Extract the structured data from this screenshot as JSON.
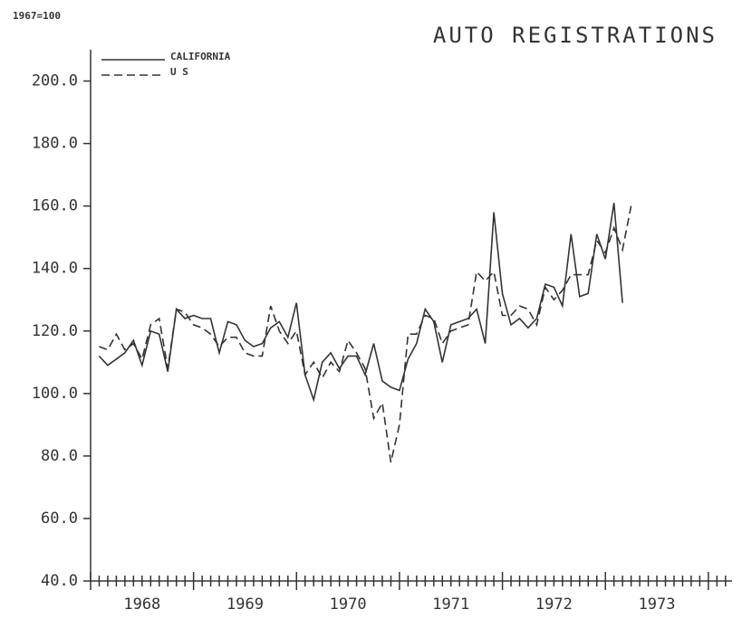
{
  "chart_data": {
    "type": "line",
    "title": "AUTO REGISTRATIONS",
    "subtitle": "1967=100",
    "x_start": 1968.083,
    "series": [
      {
        "name": "CALIFORNIA",
        "color": "#333333",
        "dash": false,
        "values": [
          112,
          109,
          111,
          113,
          117,
          109,
          120,
          119,
          107,
          127,
          124,
          125,
          124,
          124,
          113,
          123,
          122,
          117,
          115,
          116,
          121,
          123,
          118,
          129,
          106,
          98,
          110,
          113,
          108,
          112,
          112,
          106,
          116,
          104,
          102,
          101,
          111,
          116,
          127,
          123,
          110,
          122,
          123,
          124,
          127,
          116,
          158,
          132,
          122,
          124,
          121,
          124,
          135,
          134,
          128,
          151,
          131,
          132,
          151,
          143,
          161,
          129
        ]
      },
      {
        "name": "U S",
        "color": "#333333",
        "dash": true,
        "values": [
          115,
          114,
          119,
          114,
          116,
          111,
          122,
          124,
          108,
          127,
          126,
          122,
          121,
          119,
          115,
          118,
          118,
          113,
          112,
          112,
          128,
          120,
          116,
          120,
          106,
          110,
          105,
          110,
          107,
          117,
          113,
          108,
          92,
          97,
          78,
          90,
          119,
          119,
          125,
          124,
          116,
          120,
          121,
          122,
          139,
          136,
          139,
          125,
          125,
          128,
          127,
          122,
          134,
          130,
          133,
          138,
          138,
          138,
          149,
          145,
          153,
          146,
          160
        ]
      }
    ],
    "xlim": [
      1968,
      1974.23
    ],
    "xticks": [
      {
        "value": 1968.5,
        "label": "1968"
      },
      {
        "value": 1969.5,
        "label": "1969"
      },
      {
        "value": 1970.5,
        "label": "1970"
      },
      {
        "value": 1971.5,
        "label": "1971"
      },
      {
        "value": 1972.5,
        "label": "1972"
      },
      {
        "value": 1973.5,
        "label": "1973"
      }
    ],
    "ylim": [
      40,
      210
    ],
    "yticks": [
      {
        "value": 40,
        "label": "40.0"
      },
      {
        "value": 60,
        "label": "60.0"
      },
      {
        "value": 80,
        "label": "80.0"
      },
      {
        "value": 100,
        "label": "100.0"
      },
      {
        "value": 120,
        "label": "120.0"
      },
      {
        "value": 140,
        "label": "140.0"
      },
      {
        "value": 160,
        "label": "160.0"
      },
      {
        "value": 180,
        "label": "180.0"
      },
      {
        "value": 200,
        "label": "200.0"
      }
    ],
    "legend": "upper left"
  }
}
